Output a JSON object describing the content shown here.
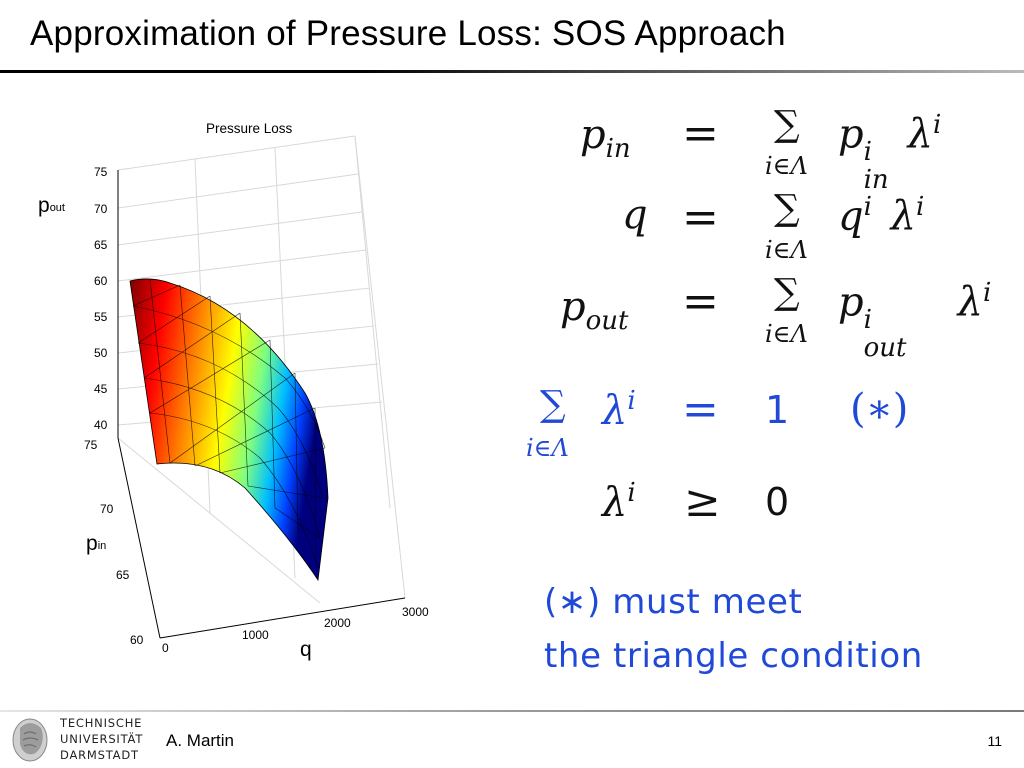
{
  "slide": {
    "title": "Approximation of Pressure Loss: SOS Approach",
    "author": "A. Martin",
    "page_number": "11",
    "logo_lines": [
      "TECHNISCHE",
      "UNIVERSITÄT",
      "DARMSTADT"
    ]
  },
  "plot": {
    "title": "Pressure Loss",
    "z_ticks": [
      "75",
      "70",
      "65",
      "60",
      "55",
      "50",
      "45",
      "40"
    ],
    "y_ticks": [
      "75",
      "70",
      "65",
      "60"
    ],
    "x_ticks": [
      "0",
      "1000",
      "2000",
      "3000"
    ],
    "z_label": {
      "main": "p",
      "sub": "out"
    },
    "y_label": {
      "main": "p",
      "sub": "in"
    },
    "x_label": "q"
  },
  "equations": {
    "pin": {
      "lhs": "p",
      "lhs_sub": "in",
      "rel": "=",
      "sum": "∑",
      "range": "i∈Λ",
      "rhs_var": "p",
      "rhs_sup": "i",
      "rhs_sub": "in",
      "lambda": "λ",
      "lambda_sup": "i"
    },
    "q": {
      "lhs": "q",
      "rel": "=",
      "sum": "∑",
      "range": "i∈Λ",
      "rhs_var": "q",
      "rhs_sup": "i",
      "lambda": "λ",
      "lambda_sup": "i"
    },
    "pout": {
      "lhs": "p",
      "lhs_sub": "out",
      "rel": "=",
      "sum": "∑",
      "range": "i∈Λ",
      "rhs_var": "p",
      "rhs_sup": "i",
      "rhs_sub": "out",
      "lambda": "λ",
      "lambda_sup": "i"
    },
    "sum_one": {
      "sum": "∑",
      "lambda": "λ",
      "lambda_sup": "i",
      "range": "i∈Λ",
      "rel": "=",
      "rhs": "1",
      "marker": "(∗)"
    },
    "nonneg": {
      "lambda": "λ",
      "lambda_sup": "i",
      "rel": "≥",
      "rhs": "0"
    },
    "note_line1": "(∗) must meet",
    "note_line2": "the triangle condition"
  },
  "colors": {
    "accent_blue": "#1f49d6",
    "surface_high": "#7f0000",
    "surface_low": "#00007f"
  }
}
